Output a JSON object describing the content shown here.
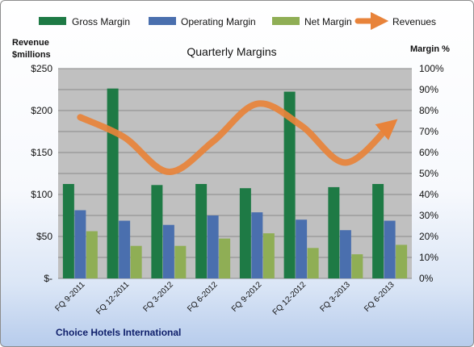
{
  "chart_data": {
    "type": "bar",
    "title": "Quarterly Margins",
    "company": "Choice Hotels International",
    "ylabel_left": [
      "Revenue",
      "$millions"
    ],
    "ylabel_right": "Margin %",
    "ylim_left": [
      0,
      250
    ],
    "ylim_right": [
      0,
      100
    ],
    "left_ticks": [
      "$-",
      "$50",
      "$100",
      "$150",
      "$200",
      "$250"
    ],
    "right_ticks": [
      "0%",
      "10%",
      "20%",
      "30%",
      "40%",
      "50%",
      "60%",
      "70%",
      "80%",
      "90%",
      "100%"
    ],
    "grid": true,
    "legend_position": "top",
    "categories": [
      "FQ 9-2011",
      "FQ 12-2011",
      "FQ 3-2012",
      "FQ 6-2012",
      "FQ 9-2012",
      "FQ 12-2012",
      "FQ 3-2013",
      "FQ 6-2013"
    ],
    "series": [
      {
        "name": "Gross Margin",
        "axis": "right",
        "kind": "bar",
        "color": "#1e7a45",
        "values": [
          45,
          90.5,
          44.5,
          45,
          43,
          89,
          43.5,
          45
        ]
      },
      {
        "name": "Operating Margin",
        "axis": "right",
        "kind": "bar",
        "color": "#4a6fae",
        "values": [
          32.5,
          27.5,
          25.5,
          30,
          31.5,
          28,
          23,
          27.5
        ]
      },
      {
        "name": "Net Margin",
        "axis": "right",
        "kind": "bar",
        "color": "#8fae55",
        "values": [
          22.5,
          15.5,
          15.5,
          19,
          21.5,
          14.5,
          11.5,
          16
        ]
      },
      {
        "name": "Revenues",
        "axis": "left",
        "kind": "line",
        "color": "#e8833a",
        "values": [
          192,
          168,
          127,
          163,
          208,
          182,
          138,
          182
        ]
      }
    ]
  }
}
